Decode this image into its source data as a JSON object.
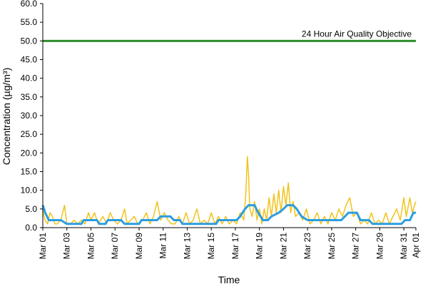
{
  "chart_data": {
    "type": "line",
    "title": "",
    "xlabel": "Time",
    "ylabel": "Concentration (µg/m³)",
    "ylim": [
      0,
      60
    ],
    "y_ticks": [
      "0.0",
      "5.0",
      "10.0",
      "15.0",
      "20.0",
      "25.0",
      "30.0",
      "35.0",
      "40.0",
      "45.0",
      "50.0",
      "55.0",
      "60.0"
    ],
    "x_range_days": [
      1,
      32
    ],
    "x_ticks": [
      {
        "day": 1,
        "label": "Mar 01"
      },
      {
        "day": 3,
        "label": "Mar 03"
      },
      {
        "day": 5,
        "label": "Mar 05"
      },
      {
        "day": 7,
        "label": "Mar 07"
      },
      {
        "day": 9,
        "label": "Mar 09"
      },
      {
        "day": 11,
        "label": "Mar 11"
      },
      {
        "day": 13,
        "label": "Mar 13"
      },
      {
        "day": 15,
        "label": "Mar 15"
      },
      {
        "day": 17,
        "label": "Mar 17"
      },
      {
        "day": 19,
        "label": "Mar 19"
      },
      {
        "day": 21,
        "label": "Mar 21"
      },
      {
        "day": 23,
        "label": "Mar 23"
      },
      {
        "day": 25,
        "label": "Mar 25"
      },
      {
        "day": 27,
        "label": "Mar 27"
      },
      {
        "day": 29,
        "label": "Mar 29"
      },
      {
        "day": 31,
        "label": "Mar 31"
      },
      {
        "day": 32,
        "label": "Apr 01"
      }
    ],
    "grid": false,
    "reference_line": {
      "value": 50,
      "label": "24 Hour Air Quality Objective",
      "color": "#2e8b2e"
    },
    "series": [
      {
        "style": "hourly",
        "color": "#f2c21b",
        "points": [
          [
            1.0,
            5
          ],
          [
            1.1,
            3
          ],
          [
            1.2,
            2
          ],
          [
            1.4,
            1
          ],
          [
            1.6,
            4
          ],
          [
            1.8,
            3
          ],
          [
            2.0,
            1
          ],
          [
            2.2,
            1
          ],
          [
            2.5,
            2
          ],
          [
            2.8,
            6
          ],
          [
            3.0,
            1
          ],
          [
            3.3,
            1
          ],
          [
            3.6,
            2
          ],
          [
            3.9,
            1
          ],
          [
            4.2,
            2
          ],
          [
            4.5,
            1
          ],
          [
            4.8,
            4
          ],
          [
            5.0,
            2
          ],
          [
            5.3,
            4
          ],
          [
            5.6,
            1
          ],
          [
            6.0,
            3
          ],
          [
            6.3,
            1
          ],
          [
            6.6,
            4
          ],
          [
            6.9,
            2
          ],
          [
            7.2,
            1
          ],
          [
            7.5,
            2
          ],
          [
            7.8,
            5
          ],
          [
            8.0,
            1
          ],
          [
            8.3,
            2
          ],
          [
            8.6,
            3
          ],
          [
            8.9,
            1
          ],
          [
            9.3,
            2
          ],
          [
            9.6,
            4
          ],
          [
            9.9,
            1
          ],
          [
            10.2,
            3
          ],
          [
            10.5,
            7
          ],
          [
            10.8,
            2
          ],
          [
            11.1,
            4
          ],
          [
            11.4,
            2
          ],
          [
            11.7,
            1
          ],
          [
            12.0,
            1
          ],
          [
            12.3,
            3
          ],
          [
            12.6,
            1
          ],
          [
            12.9,
            4
          ],
          [
            13.2,
            1
          ],
          [
            13.5,
            2
          ],
          [
            13.8,
            5
          ],
          [
            14.1,
            1
          ],
          [
            14.4,
            2
          ],
          [
            14.7,
            1
          ],
          [
            15.0,
            4
          ],
          [
            15.3,
            1
          ],
          [
            15.6,
            3
          ],
          [
            15.9,
            1
          ],
          [
            16.2,
            3
          ],
          [
            16.5,
            1
          ],
          [
            16.8,
            2
          ],
          [
            17.1,
            1
          ],
          [
            17.4,
            4
          ],
          [
            17.7,
            2
          ],
          [
            17.85,
            8
          ],
          [
            18.0,
            19
          ],
          [
            18.1,
            14
          ],
          [
            18.2,
            5
          ],
          [
            18.4,
            3
          ],
          [
            18.6,
            7
          ],
          [
            18.8,
            2
          ],
          [
            19.0,
            5
          ],
          [
            19.2,
            1
          ],
          [
            19.4,
            5
          ],
          [
            19.6,
            2
          ],
          [
            19.8,
            8
          ],
          [
            20.0,
            3
          ],
          [
            20.2,
            9
          ],
          [
            20.4,
            4
          ],
          [
            20.6,
            10
          ],
          [
            20.8,
            4
          ],
          [
            21.0,
            11
          ],
          [
            21.2,
            6
          ],
          [
            21.4,
            12
          ],
          [
            21.6,
            4
          ],
          [
            21.8,
            7
          ],
          [
            22.0,
            3
          ],
          [
            22.3,
            4
          ],
          [
            22.6,
            2
          ],
          [
            22.9,
            5
          ],
          [
            23.2,
            1
          ],
          [
            23.5,
            2
          ],
          [
            23.8,
            4
          ],
          [
            24.1,
            1
          ],
          [
            24.4,
            3
          ],
          [
            24.7,
            1
          ],
          [
            25.0,
            4
          ],
          [
            25.3,
            2
          ],
          [
            25.6,
            5
          ],
          [
            25.9,
            3
          ],
          [
            26.2,
            6
          ],
          [
            26.5,
            8
          ],
          [
            26.8,
            3
          ],
          [
            27.1,
            4
          ],
          [
            27.4,
            1
          ],
          [
            27.7,
            2
          ],
          [
            28.0,
            1
          ],
          [
            28.3,
            4
          ],
          [
            28.6,
            1
          ],
          [
            28.9,
            2
          ],
          [
            29.2,
            1
          ],
          [
            29.5,
            4
          ],
          [
            29.8,
            1
          ],
          [
            30.1,
            3
          ],
          [
            30.4,
            5
          ],
          [
            30.7,
            2
          ],
          [
            31.0,
            8
          ],
          [
            31.2,
            3
          ],
          [
            31.5,
            8
          ],
          [
            31.7,
            4
          ],
          [
            32.0,
            7
          ]
        ]
      },
      {
        "style": "daily-running-mean",
        "color": "#2a9de0",
        "points": [
          [
            1.0,
            6
          ],
          [
            1.2,
            4
          ],
          [
            1.5,
            2
          ],
          [
            2.5,
            2
          ],
          [
            3.0,
            1
          ],
          [
            4.2,
            1
          ],
          [
            4.4,
            2
          ],
          [
            5.5,
            2
          ],
          [
            5.7,
            1
          ],
          [
            6.2,
            1
          ],
          [
            6.4,
            2
          ],
          [
            7.5,
            2
          ],
          [
            7.8,
            1
          ],
          [
            9.0,
            1
          ],
          [
            9.2,
            2
          ],
          [
            10.5,
            2
          ],
          [
            10.8,
            3
          ],
          [
            11.6,
            3
          ],
          [
            11.9,
            2
          ],
          [
            12.4,
            2
          ],
          [
            12.6,
            1
          ],
          [
            15.4,
            1
          ],
          [
            15.6,
            2
          ],
          [
            17.1,
            2
          ],
          [
            17.4,
            3
          ],
          [
            17.8,
            5
          ],
          [
            18.1,
            6
          ],
          [
            18.6,
            6
          ],
          [
            18.9,
            4
          ],
          [
            19.3,
            2
          ],
          [
            19.7,
            2
          ],
          [
            20.0,
            3
          ],
          [
            20.6,
            4
          ],
          [
            21.0,
            5
          ],
          [
            21.3,
            6
          ],
          [
            21.8,
            6
          ],
          [
            22.1,
            5
          ],
          [
            22.5,
            3
          ],
          [
            23.0,
            2
          ],
          [
            25.8,
            2
          ],
          [
            26.1,
            3
          ],
          [
            26.4,
            4
          ],
          [
            27.1,
            4
          ],
          [
            27.4,
            2
          ],
          [
            28.1,
            2
          ],
          [
            28.4,
            1
          ],
          [
            30.8,
            1
          ],
          [
            31.1,
            2
          ],
          [
            31.5,
            2
          ],
          [
            31.8,
            4
          ],
          [
            32.0,
            4
          ]
        ]
      }
    ]
  }
}
